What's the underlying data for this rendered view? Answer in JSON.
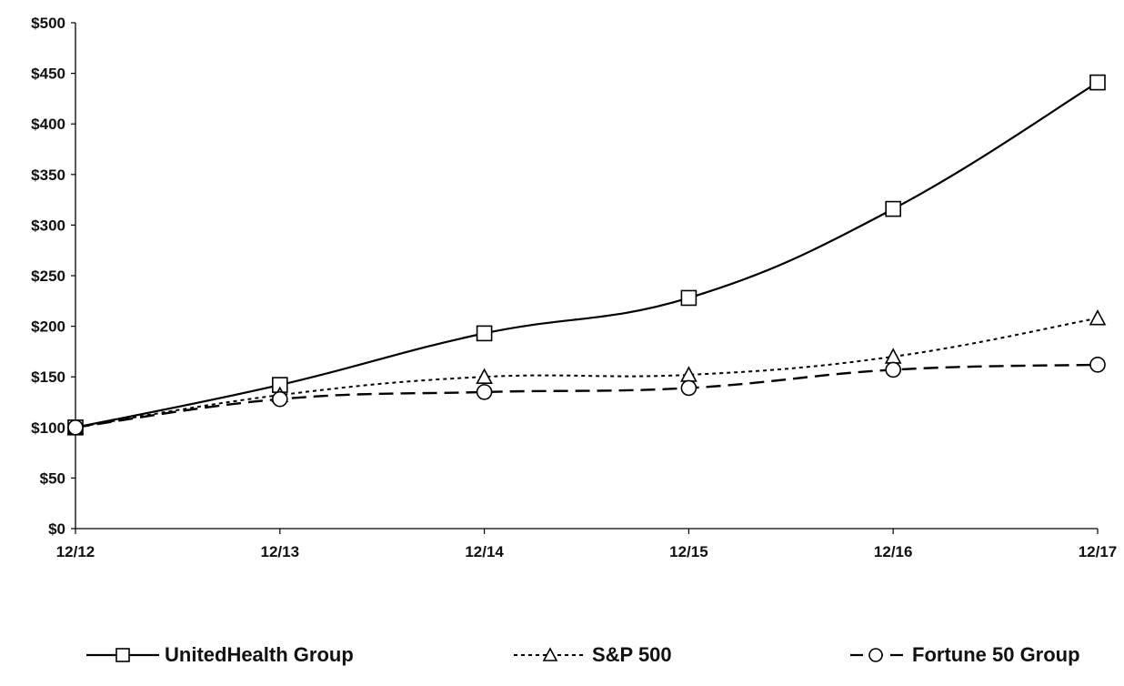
{
  "chart_data": {
    "type": "line",
    "categories": [
      "12/12",
      "12/13",
      "12/14",
      "12/15",
      "12/16",
      "12/17"
    ],
    "y_ticks": [
      "$0",
      "$50",
      "$100",
      "$150",
      "$200",
      "$250",
      "$300",
      "$350",
      "$400",
      "$450",
      "$500"
    ],
    "ylim": [
      0,
      500
    ],
    "title": "",
    "xlabel": "",
    "ylabel": "",
    "grid": false,
    "legend_position": "bottom",
    "series": [
      {
        "name": "UnitedHealth Group",
        "values": [
          100,
          142,
          193,
          228,
          316,
          441
        ],
        "marker": "square",
        "dash": "solid",
        "color": "#000000"
      },
      {
        "name": "S&P 500",
        "values": [
          100,
          132,
          150,
          152,
          170,
          208
        ],
        "marker": "triangle",
        "dash": "dotted",
        "color": "#000000"
      },
      {
        "name": "Fortune 50 Group",
        "values": [
          100,
          128,
          135,
          139,
          157,
          162
        ],
        "marker": "circle",
        "dash": "long-dash",
        "color": "#000000"
      }
    ]
  }
}
